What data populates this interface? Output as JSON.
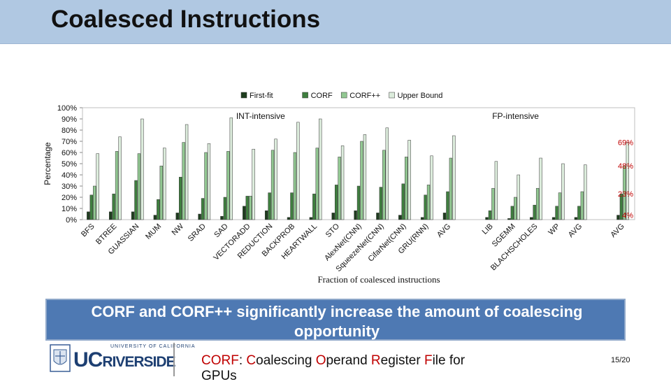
{
  "slide": {
    "title": "Coalesced Instructions",
    "banner": "CORF and CORF++ significantly increase the amount of coalescing opportunity",
    "footer": {
      "corf": "CORF",
      "rest": ": Coalescing Operand Register File for GPUs"
    },
    "page": "15/20",
    "logo": {
      "top_text": "UNIVERSITY OF CALIFORNIA",
      "uc": "UC",
      "name": "RIVERSIDE"
    }
  },
  "chart_data": {
    "type": "bar",
    "title": "",
    "xlabel": "Fraction of coalesced instructions",
    "ylabel": "Percentage",
    "ylim": [
      0,
      100
    ],
    "yticks": [
      "0%",
      "10%",
      "20%",
      "30%",
      "40%",
      "50%",
      "60%",
      "70%",
      "80%",
      "90%",
      "100%"
    ],
    "legend_position": "top",
    "grid": false,
    "groups": [
      {
        "label": "INT-intensive",
        "start": 0,
        "end": 15
      },
      {
        "label": "FP-intensive",
        "start": 16,
        "end": 21
      }
    ],
    "categories": [
      "BFS",
      "BTREE",
      "GUASSIAN",
      "MUM",
      "NW",
      "SRAD",
      "SAD",
      "VECTORADD",
      "REDUCTION",
      "BACKPROB",
      "HEARTWALL",
      "STO",
      "AlexNet(CNN)",
      "SqueezeNet(CNN)",
      "CifarNet(CNN)",
      "GRU(RNN)",
      "AVG",
      "LIB",
      "SGEMM",
      "BLACHSCHOLES",
      "WP",
      "AVG",
      "AVG"
    ],
    "series": [
      {
        "name": "First-fit",
        "color": "#1f3d1f",
        "values": [
          7,
          7,
          7,
          4,
          6,
          5,
          3,
          12,
          8,
          2,
          2,
          6,
          8,
          6,
          4,
          2,
          6,
          2,
          1,
          2,
          2,
          2,
          4
        ]
      },
      {
        "name": "CORF",
        "color": "#3f7f3f",
        "values": [
          22,
          23,
          35,
          18,
          38,
          19,
          20,
          21,
          24,
          24,
          23,
          31,
          30,
          29,
          32,
          22,
          25,
          8,
          12,
          13,
          12,
          12,
          23
        ]
      },
      {
        "name": "CORF++",
        "color": "#92c892",
        "values": [
          30,
          61,
          59,
          48,
          69,
          60,
          61,
          21,
          62,
          60,
          64,
          56,
          70,
          62,
          56,
          31,
          55,
          28,
          20,
          28,
          24,
          25,
          48
        ]
      },
      {
        "name": "Upper Bound",
        "color": "#dcecdc",
        "values": [
          59,
          74,
          90,
          64,
          85,
          68,
          91,
          63,
          72,
          87,
          90,
          66,
          76,
          82,
          71,
          57,
          75,
          52,
          40,
          55,
          50,
          49,
          69
        ]
      }
    ],
    "annotations": [
      "69%",
      "48%",
      "23%",
      "4%"
    ]
  }
}
